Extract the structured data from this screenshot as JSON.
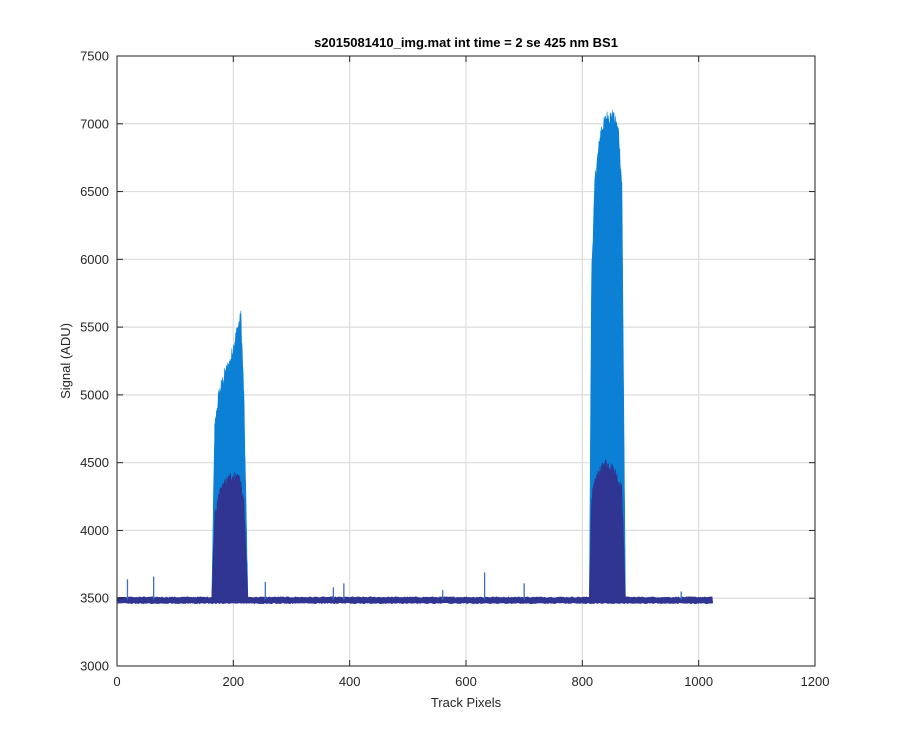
{
  "chart_data": {
    "type": "area",
    "title": "s2015081410_img.mat int time = 2 se  425 nm BS1",
    "xlabel": "Track Pixels",
    "ylabel": "Signal (ADU)",
    "xlim": [
      0,
      1200
    ],
    "ylim": [
      3000,
      7500
    ],
    "xticks": [
      0,
      200,
      400,
      600,
      800,
      1000,
      1200
    ],
    "yticks": [
      3000,
      3500,
      4000,
      4500,
      5000,
      5500,
      6000,
      6500,
      7000,
      7500
    ],
    "grid": true,
    "x_range": [
      1,
      1024
    ],
    "baseline_signal": 3490,
    "series": [
      {
        "color": "#0b80d4",
        "peaks": [
          {
            "x": [
              163,
              168,
              175,
              185,
              195,
              205,
              213,
              218,
              225
            ],
            "y": [
              3500,
              4750,
              5000,
              5150,
              5250,
              5450,
              5580,
              5000,
              3500
            ]
          },
          {
            "x": [
              812,
              816,
              822,
              832,
              842,
              852,
              862,
              868,
              874
            ],
            "y": [
              3500,
              5900,
              6600,
              6950,
              7050,
              7060,
              6950,
              6550,
              3500
            ]
          }
        ]
      },
      {
        "color": "#2f3591",
        "peaks": [
          {
            "x": [
              163,
              168,
              178,
              195,
              210,
              218,
              225
            ],
            "y": [
              3500,
              4100,
              4300,
              4400,
              4400,
              4200,
              3500
            ]
          },
          {
            "x": [
              812,
              816,
              825,
              840,
              855,
              868,
              874
            ],
            "y": [
              3500,
              4250,
              4400,
              4500,
              4450,
              4300,
              3500
            ]
          }
        ]
      }
    ],
    "spikes": [
      {
        "x": 18,
        "y": 3640
      },
      {
        "x": 63,
        "y": 3660
      },
      {
        "x": 255,
        "y": 3620
      },
      {
        "x": 372,
        "y": 3580
      },
      {
        "x": 390,
        "y": 3610
      },
      {
        "x": 560,
        "y": 3560
      },
      {
        "x": 632,
        "y": 3690
      },
      {
        "x": 700,
        "y": 3610
      },
      {
        "x": 970,
        "y": 3550
      }
    ]
  }
}
